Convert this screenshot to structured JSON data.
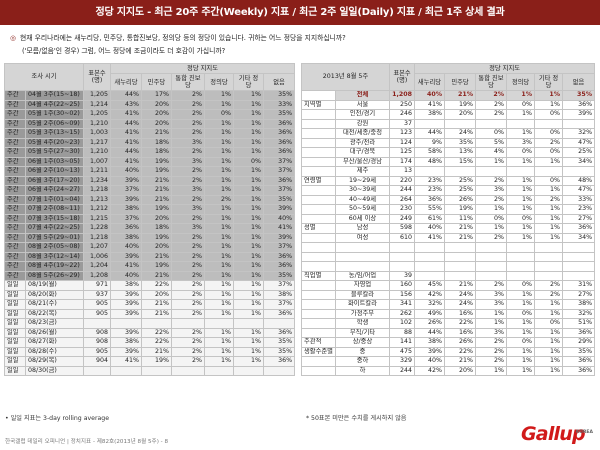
{
  "header": "정당 지지도 - 최근 20주 주간(Weekly) 지표 / 최근 2주 일일(Daily) 지표 / 최근 1주 상세 결과",
  "question": {
    "line1": "현재 우리나라에는 새누리당, 민주당, 통합진보당, 정의당 등의 정당이 있습니다. 귀하는 어느 정당을 지지하십니까?",
    "line2": "('모름/없음'인 경우) 그럼, 어느 정당에 조금이라도 더 호감이 가십니까?"
  },
  "left": {
    "h_title": "정당 지지도",
    "h_period": "조사 시기",
    "h_n": "표본수 (명)",
    "cols": [
      "새누리당",
      "민주당",
      "통합 진보당",
      "정의당",
      "기타 정당",
      "없음"
    ],
    "rows": [
      [
        "w",
        "주간",
        "04월 3주(15~18)",
        "1,205",
        "44%",
        "17%",
        "2%",
        "1%",
        "1%",
        "35%"
      ],
      [
        "w",
        "주간",
        "04월 4주(22~25)",
        "1,214",
        "43%",
        "20%",
        "2%",
        "1%",
        "1%",
        "33%"
      ],
      [
        "w",
        "주간",
        "05월 1주(30~02)",
        "1,205",
        "41%",
        "20%",
        "2%",
        "0%",
        "1%",
        "35%"
      ],
      [
        "w",
        "주간",
        "05월 2주(06~09)",
        "1,210",
        "44%",
        "20%",
        "2%",
        "1%",
        "1%",
        "36%"
      ],
      [
        "w",
        "주간",
        "05월 3주(13~15)",
        "1,003",
        "41%",
        "21%",
        "2%",
        "1%",
        "1%",
        "36%"
      ],
      [
        "w",
        "주간",
        "05월 4주(20~23)",
        "1,217",
        "41%",
        "18%",
        "3%",
        "1%",
        "1%",
        "36%"
      ],
      [
        "w",
        "주간",
        "05월 5주(27~30)",
        "1,210",
        "44%",
        "18%",
        "2%",
        "1%",
        "1%",
        "36%"
      ],
      [
        "w",
        "주간",
        "06월 1주(03~05)",
        "1,007",
        "41%",
        "19%",
        "3%",
        "1%",
        "0%",
        "37%"
      ],
      [
        "w",
        "주간",
        "06월 2주(10~13)",
        "1,211",
        "40%",
        "19%",
        "2%",
        "1%",
        "1%",
        "37%"
      ],
      [
        "w",
        "주간",
        "06월 3주(17~20)",
        "1,234",
        "39%",
        "21%",
        "2%",
        "1%",
        "1%",
        "36%"
      ],
      [
        "w",
        "주간",
        "06월 4주(24~27)",
        "1,218",
        "37%",
        "21%",
        "3%",
        "1%",
        "1%",
        "37%"
      ],
      [
        "w",
        "주간",
        "07월 1주(01~04)",
        "1,213",
        "39%",
        "21%",
        "2%",
        "2%",
        "1%",
        "35%"
      ],
      [
        "w",
        "주간",
        "07월 2주(08~11)",
        "1,212",
        "38%",
        "19%",
        "3%",
        "1%",
        "1%",
        "39%"
      ],
      [
        "w",
        "주간",
        "07월 3주(15~18)",
        "1,215",
        "37%",
        "20%",
        "2%",
        "1%",
        "1%",
        "40%"
      ],
      [
        "w",
        "주간",
        "07월 4주(22~25)",
        "1,228",
        "36%",
        "18%",
        "3%",
        "1%",
        "1%",
        "41%"
      ],
      [
        "w",
        "주간",
        "07월 5주(29~01)",
        "1,218",
        "38%",
        "19%",
        "2%",
        "1%",
        "1%",
        "39%"
      ],
      [
        "w",
        "주간",
        "08월 2주(05~08)",
        "1,207",
        "40%",
        "20%",
        "2%",
        "1%",
        "1%",
        "37%"
      ],
      [
        "w",
        "주간",
        "08월 3주(12~14)",
        "1,006",
        "39%",
        "21%",
        "2%",
        "1%",
        "1%",
        "36%"
      ],
      [
        "w",
        "주간",
        "08월 4주(19~22)",
        "1,204",
        "41%",
        "19%",
        "2%",
        "1%",
        "1%",
        "36%"
      ],
      [
        "w",
        "주간",
        "08월 5주(26~29)",
        "1,208",
        "40%",
        "21%",
        "2%",
        "1%",
        "1%",
        "35%"
      ],
      [
        "d",
        "일일",
        "08/19(월)",
        "971",
        "38%",
        "22%",
        "2%",
        "1%",
        "1%",
        "37%"
      ],
      [
        "d",
        "일일",
        "08/20(화)",
        "937",
        "39%",
        "20%",
        "2%",
        "1%",
        "1%",
        "38%"
      ],
      [
        "d",
        "일일",
        "08/21(수)",
        "905",
        "39%",
        "21%",
        "2%",
        "1%",
        "1%",
        "37%"
      ],
      [
        "d",
        "일일",
        "08/22(목)",
        "905",
        "39%",
        "21%",
        "2%",
        "1%",
        "1%",
        "36%"
      ],
      [
        "d",
        "일일",
        "08/23(금)",
        "",
        "",
        "",
        "",
        "",
        "",
        ""
      ],
      [
        "d",
        "일일",
        "08/26(월)",
        "908",
        "39%",
        "22%",
        "2%",
        "1%",
        "1%",
        "36%"
      ],
      [
        "d",
        "일일",
        "08/27(화)",
        "908",
        "38%",
        "22%",
        "2%",
        "1%",
        "1%",
        "35%"
      ],
      [
        "d",
        "일일",
        "08/28(수)",
        "905",
        "39%",
        "21%",
        "2%",
        "1%",
        "1%",
        "35%"
      ],
      [
        "d",
        "일일",
        "08/29(목)",
        "904",
        "41%",
        "19%",
        "2%",
        "1%",
        "1%",
        "36%"
      ],
      [
        "d",
        "일일",
        "08/30(금)",
        "",
        "",
        "",
        "",
        "",
        "",
        ""
      ]
    ],
    "note": "• 일일 지표는 3-day rolling average"
  },
  "right": {
    "h_title": "정당 지지도",
    "h_period": "2013년 8월 5주",
    "h_n": "표본수 (명)",
    "cols": [
      "새누리당",
      "민주당",
      "통합 진보당",
      "정의당",
      "기타 정당",
      "없음"
    ],
    "rows": [
      [
        "hl",
        "",
        "전체",
        "1,208",
        "40%",
        "21%",
        "2%",
        "1%",
        "1%",
        "35%"
      ],
      [
        "n",
        "지역별",
        "서울",
        "250",
        "41%",
        "19%",
        "2%",
        "0%",
        "1%",
        "36%"
      ],
      [
        "n",
        "",
        "인천/경기",
        "246",
        "38%",
        "20%",
        "2%",
        "1%",
        "0%",
        "39%"
      ],
      [
        "n",
        "",
        "강원",
        "37",
        "",
        "",
        "",
        "",
        "",
        ""
      ],
      [
        "n",
        "",
        "대전/세종/충청",
        "123",
        "44%",
        "24%",
        "0%",
        "1%",
        "0%",
        "32%"
      ],
      [
        "n",
        "",
        "광주/전라",
        "124",
        "9%",
        "35%",
        "5%",
        "3%",
        "2%",
        "47%"
      ],
      [
        "n",
        "",
        "대구/경북",
        "125",
        "58%",
        "13%",
        "4%",
        "0%",
        "0%",
        "25%"
      ],
      [
        "n",
        "",
        "부산/울산/경남",
        "174",
        "48%",
        "15%",
        "1%",
        "1%",
        "1%",
        "34%"
      ],
      [
        "n",
        "",
        "제주",
        "13",
        "",
        "",
        "",
        "",
        "",
        ""
      ],
      [
        "n",
        "연령별",
        "19~29세",
        "220",
        "23%",
        "25%",
        "2%",
        "1%",
        "0%",
        "48%"
      ],
      [
        "n",
        "",
        "30~39세",
        "244",
        "23%",
        "25%",
        "3%",
        "1%",
        "1%",
        "47%"
      ],
      [
        "n",
        "",
        "40~49세",
        "264",
        "36%",
        "26%",
        "2%",
        "1%",
        "2%",
        "33%"
      ],
      [
        "n",
        "",
        "50~59세",
        "230",
        "55%",
        "19%",
        "1%",
        "1%",
        "1%",
        "23%"
      ],
      [
        "n",
        "",
        "60세 이상",
        "249",
        "61%",
        "11%",
        "0%",
        "0%",
        "1%",
        "27%"
      ],
      [
        "n",
        "성별",
        "남성",
        "598",
        "40%",
        "21%",
        "1%",
        "1%",
        "1%",
        "36%"
      ],
      [
        "n",
        "",
        "여성",
        "610",
        "41%",
        "21%",
        "2%",
        "1%",
        "1%",
        "34%"
      ],
      [
        "b",
        "",
        "",
        "",
        "",
        "",
        "",
        "",
        "",
        ""
      ],
      [
        "b",
        "",
        "",
        "",
        "",
        "",
        "",
        "",
        "",
        ""
      ],
      [
        "b",
        "",
        "",
        "",
        "",
        "",
        "",
        "",
        "",
        ""
      ],
      [
        "n",
        "직업별",
        "농/임/어업",
        "39",
        "",
        "",
        "",
        "",
        "",
        ""
      ],
      [
        "n",
        "",
        "자영업",
        "160",
        "45%",
        "21%",
        "2%",
        "0%",
        "2%",
        "31%"
      ],
      [
        "n",
        "",
        "블루칼라",
        "156",
        "42%",
        "24%",
        "3%",
        "1%",
        "2%",
        "27%"
      ],
      [
        "n",
        "",
        "화이트칼라",
        "341",
        "32%",
        "24%",
        "3%",
        "1%",
        "1%",
        "38%"
      ],
      [
        "n",
        "",
        "가정주부",
        "262",
        "49%",
        "16%",
        "1%",
        "0%",
        "1%",
        "32%"
      ],
      [
        "n",
        "",
        "학생",
        "102",
        "26%",
        "22%",
        "1%",
        "1%",
        "0%",
        "51%"
      ],
      [
        "n",
        "",
        "무직/기타",
        "88",
        "44%",
        "16%",
        "3%",
        "1%",
        "1%",
        "36%"
      ],
      [
        "n",
        "주관적",
        "상/중상",
        "141",
        "38%",
        "26%",
        "2%",
        "0%",
        "1%",
        "29%"
      ],
      [
        "n",
        "생활수준별",
        "중",
        "475",
        "39%",
        "22%",
        "2%",
        "1%",
        "1%",
        "35%"
      ],
      [
        "n",
        "",
        "중하",
        "329",
        "40%",
        "21%",
        "2%",
        "1%",
        "1%",
        "36%"
      ],
      [
        "n",
        "",
        "하",
        "244",
        "42%",
        "20%",
        "1%",
        "1%",
        "1%",
        "36%"
      ]
    ],
    "note": "* 50표본 미만은 수치를 게시하지 않음"
  },
  "footer": "한국갤럽 데일리 오피니언 | 정치지표 - 제82호(2013년 8월 5주) - 8",
  "logo": "Gallup",
  "logo_sub": "KOREA"
}
